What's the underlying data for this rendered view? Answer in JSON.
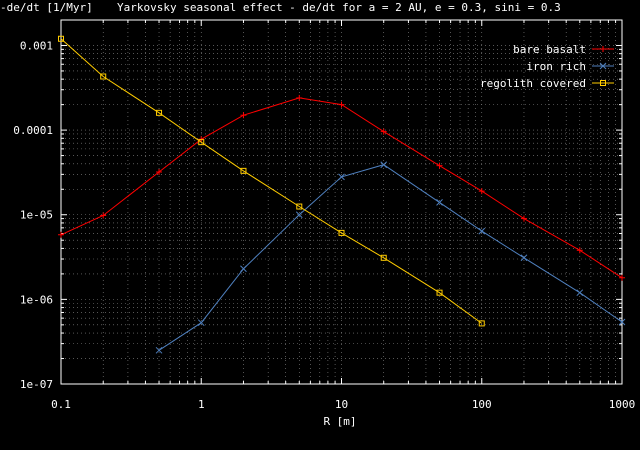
{
  "chart_data": {
    "type": "line",
    "title": "Yarkovsky seasonal effect - de/dt for a = 2 AU, e = 0.3, sini = 0.3",
    "xlabel": "R [m]",
    "ylabel": "-de/dt [1/Myr]",
    "x_scale": "log",
    "y_scale": "log",
    "xlim": [
      0.1,
      1000
    ],
    "ylim": [
      1e-07,
      0.002
    ],
    "grid": true,
    "legend_position": "top-right",
    "x_ticks": [
      {
        "value": 0.1,
        "label": "0.1"
      },
      {
        "value": 1,
        "label": "1"
      },
      {
        "value": 10,
        "label": "10"
      },
      {
        "value": 100,
        "label": "100"
      },
      {
        "value": 1000,
        "label": "1000"
      }
    ],
    "y_ticks": [
      {
        "value": 1e-07,
        "label": "1e-07"
      },
      {
        "value": 1e-06,
        "label": "1e-06"
      },
      {
        "value": 1e-05,
        "label": "1e-05"
      },
      {
        "value": 0.0001,
        "label": "0.0001"
      },
      {
        "value": 0.001,
        "label": "0.001"
      }
    ],
    "series": [
      {
        "name": "bare basalt",
        "color": "#ff0000",
        "marker": "plus",
        "x": [
          0.1,
          0.2,
          0.5,
          1,
          2,
          5,
          10,
          20,
          50,
          100,
          200,
          500,
          1000
        ],
        "y": [
          5.8e-06,
          9.8e-06,
          3.2e-05,
          7.8e-05,
          0.00015,
          0.00024,
          0.0002,
          9.6e-05,
          3.8e-05,
          1.9e-05,
          9e-06,
          3.8e-06,
          1.8e-06
        ]
      },
      {
        "name": "iron rich",
        "color": "#4f80bf",
        "marker": "cross",
        "x": [
          0.5,
          1,
          2,
          5,
          10,
          20,
          50,
          100,
          200,
          500,
          1000
        ],
        "y": [
          2.5e-07,
          5.3e-07,
          2.3e-06,
          1e-05,
          2.8e-05,
          3.9e-05,
          1.4e-05,
          6.4e-06,
          3.1e-06,
          1.2e-06,
          5.4e-07
        ]
      },
      {
        "name": "regolith covered",
        "color": "#ffcc00",
        "marker": "square",
        "x": [
          0.1,
          0.2,
          0.5,
          1,
          2,
          5,
          10,
          20,
          50,
          100
        ],
        "y": [
          0.0012,
          0.00043,
          0.00016,
          7.2e-05,
          3.3e-05,
          1.25e-05,
          6.1e-06,
          3.1e-06,
          1.2e-06,
          5.2e-07
        ]
      }
    ]
  }
}
